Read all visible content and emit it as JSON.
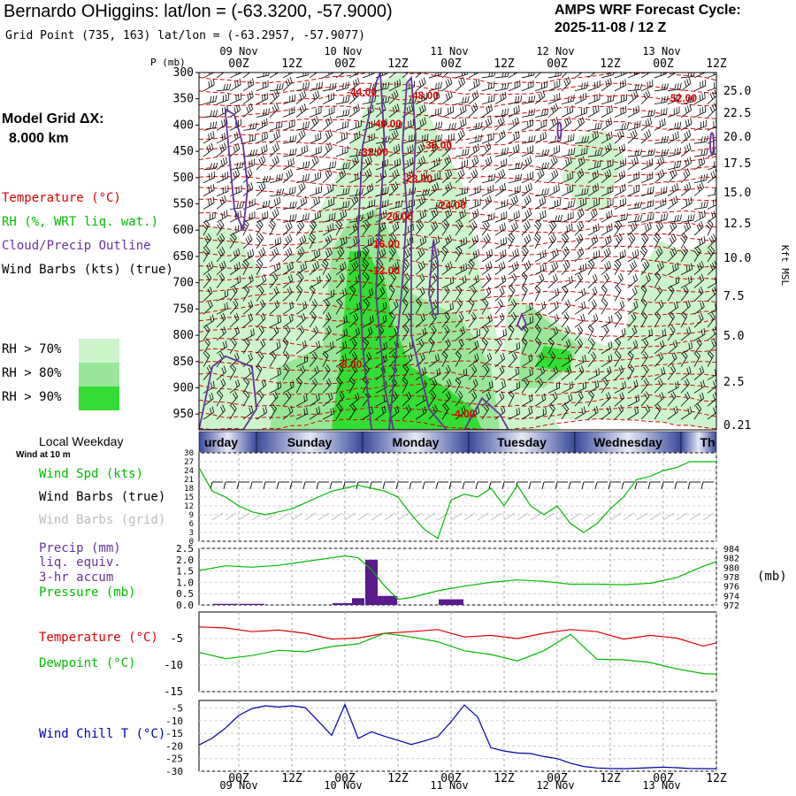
{
  "header": {
    "title": "Bernardo OHiggins:  lat/lon = (-63.3200, -57.9000)",
    "grid_point": "Grid Point (735, 163) lat/lon = (-63.2957, -57.9077)",
    "cycle_line1": "AMPS WRF Forecast Cycle:",
    "cycle_line2": "2025-11-08 / 12  Z"
  },
  "left_legend": {
    "model_grid_line1": "Model Grid ΔX:",
    "model_grid_line2": "8.000 km",
    "temperature": "Temperature (°C)",
    "rh": "RH (%, WRT liq. wat.)",
    "cloud": "Cloud/Precip Outline",
    "wind_barbs": "Wind Barbs (kts) (true)",
    "rh_levels": [
      "RH > 70%",
      "RH > 80%",
      "RH > 90%"
    ],
    "local_weekday": "Local Weekday",
    "wind_at_10m": "Wind at 10 m",
    "wind_spd": "Wind Spd (kts)",
    "wind_barbs_true": "Wind Barbs (true)",
    "wind_barbs_grid": "Wind Barbs (grid)",
    "precip_l1": "Precip (mm)",
    "precip_l2": "liq. equiv.",
    "precip_l3": "3-hr accum",
    "pressure": "Pressure (mb)",
    "temp2": "Temperature (°C)",
    "dewpoint": "Dewpoint (°C)",
    "windchill": "Wind Chill T (°C)"
  },
  "colors": {
    "temp": "#dd0000",
    "rh70": "#ccf5cc",
    "rh80": "#99e699",
    "rh90": "#33dd33",
    "cloud": "#663399",
    "green": "#00bb00",
    "blue": "#0000aa",
    "precip": "#5a1a8c"
  },
  "chart_data": [
    {
      "type": "time-height cross-section",
      "id": "cross-section",
      "ylabel_left": "P (mb)",
      "ylabel_right": "Kft MSL",
      "pressure_levels": [
        300,
        350,
        400,
        450,
        500,
        550,
        600,
        650,
        700,
        750,
        800,
        850,
        900,
        950
      ],
      "height_ticks": [
        "25.0",
        "22.5",
        "20.0",
        "17.5",
        "15.0",
        "12.5",
        "10.0",
        "7.5",
        "5.0",
        "2.5",
        "0.21"
      ],
      "temp_labels": [
        "-44.00",
        "-48.00",
        "-40.00",
        "-52.00",
        "-32.00",
        "-36.00",
        "-28.00",
        "-24.00",
        "-20.00",
        "-16.00",
        "-12.00",
        "-8.00",
        "-4.00"
      ],
      "date_labels": [
        "09 Nov",
        "10 Nov",
        "11 Nov",
        "12 Nov",
        "13 Nov"
      ],
      "time_ticks": [
        "00Z",
        "12Z",
        "00Z",
        "12Z",
        "00Z",
        "12Z",
        "00Z",
        "12Z",
        "00Z",
        "12Z"
      ]
    },
    {
      "type": "weekday-bar",
      "id": "weekday",
      "days": [
        "urday",
        "Sunday",
        "Monday",
        "Tuesday",
        "Wednesday",
        "Th"
      ]
    },
    {
      "type": "line",
      "id": "wind-speed",
      "title": "Wind Spd (kts)",
      "yticks": [
        0,
        3,
        6,
        9,
        12,
        15,
        18,
        21,
        24,
        27,
        30
      ],
      "ylim": [
        0,
        30
      ],
      "x_hours": [
        0,
        3,
        6,
        9,
        12,
        15,
        18,
        21,
        24,
        27,
        30,
        33,
        36,
        39,
        42,
        45,
        48,
        51,
        54,
        57,
        60,
        63,
        66,
        69,
        72,
        75,
        78,
        81,
        84,
        87,
        90,
        93,
        96,
        99,
        102,
        105,
        108,
        111,
        114,
        117
      ],
      "values": [
        25,
        17,
        15,
        12,
        10,
        9,
        10,
        11,
        13,
        15,
        17,
        18,
        19,
        18,
        17,
        15,
        9,
        4,
        1,
        14,
        16,
        15,
        18,
        12,
        19,
        12,
        9,
        12,
        6,
        3,
        6,
        11,
        15,
        21,
        22,
        24,
        25,
        27,
        27,
        27
      ]
    },
    {
      "type": "bar+line",
      "id": "precip-pressure",
      "precip_yticks": [
        "2.5",
        "2.0",
        "1.5",
        "1.0",
        "0.5",
        "0.0"
      ],
      "precip_ylim": [
        0,
        2.5
      ],
      "pressure_yticks": [
        "984",
        "982",
        "980",
        "978",
        "976",
        "974",
        "972"
      ],
      "pressure_ylim": [
        972,
        984
      ],
      "ylabel_right": "(mb)",
      "precip_hours": [
        6,
        12,
        33,
        36,
        39,
        42,
        57
      ],
      "precip_values": [
        0.05,
        0.05,
        0.08,
        0.3,
        2.0,
        0.4,
        0.25
      ],
      "pressure_hours": [
        0,
        6,
        12,
        18,
        24,
        30,
        33,
        36,
        39,
        42,
        45,
        48,
        54,
        60,
        66,
        72,
        78,
        84,
        90,
        96,
        102,
        108,
        114,
        117
      ],
      "pressure_values": [
        979.3,
        980.3,
        980.0,
        980.4,
        981.2,
        982.0,
        982.4,
        982.0,
        979.5,
        976.0,
        973.2,
        973.6,
        975.0,
        976.0,
        976.8,
        977.3,
        977.0,
        976.4,
        976.4,
        976.3,
        976.6,
        977.8,
        980.2,
        981.2
      ]
    },
    {
      "type": "line",
      "id": "temp-dewpoint",
      "yticks": [
        -5,
        -10,
        -15
      ],
      "ylim": [
        -15,
        0
      ],
      "x_hours": [
        0,
        6,
        12,
        18,
        24,
        30,
        36,
        42,
        48,
        54,
        60,
        66,
        72,
        78,
        84,
        90,
        96,
        102,
        108,
        114,
        117
      ],
      "temperature": [
        -2.8,
        -3.0,
        -3.7,
        -3.4,
        -4.0,
        -5.1,
        -4.9,
        -4.0,
        -3.7,
        -3.3,
        -4.7,
        -4.4,
        -5.0,
        -4.0,
        -3.3,
        -3.7,
        -5.1,
        -4.4,
        -4.9,
        -6.4,
        -5.8
      ],
      "dewpoint": [
        -7.6,
        -8.8,
        -8.2,
        -7.2,
        -7.5,
        -6.5,
        -6.0,
        -4.0,
        -4.7,
        -5.6,
        -7.3,
        -8.0,
        -9.2,
        -7.3,
        -4.2,
        -8.9,
        -9.0,
        -9.5,
        -10.7,
        -11.6,
        -11.7
      ]
    },
    {
      "type": "line",
      "id": "wind-chill",
      "yticks": [
        -5,
        -10,
        -15,
        -20,
        -25,
        -30
      ],
      "ylim": [
        -30,
        -2
      ],
      "x_hours": [
        0,
        3,
        6,
        9,
        12,
        15,
        18,
        21,
        24,
        27,
        30,
        33,
        36,
        39,
        42,
        45,
        48,
        51,
        54,
        57,
        60,
        63,
        66,
        69,
        72,
        75,
        78,
        81,
        84,
        87,
        90,
        93,
        96,
        99,
        102,
        105,
        108,
        111,
        114,
        117
      ],
      "values": [
        -19.6,
        -16.9,
        -12.9,
        -7.9,
        -5.2,
        -4.1,
        -4.6,
        -4.1,
        -4.8,
        -10.2,
        -15.8,
        -3.6,
        -17.0,
        -14.4,
        -16.2,
        -17.8,
        -19.4,
        -18.0,
        -16.3,
        -10.4,
        -3.8,
        -8.5,
        -20.7,
        -22.0,
        -22.8,
        -23.0,
        -24.2,
        -25.0,
        -26.8,
        -28.1,
        -28.7,
        -28.9,
        -29.0,
        -28.8,
        -28.6,
        -28.4,
        -28.6,
        -28.9,
        -29.0,
        -29.0
      ]
    }
  ]
}
